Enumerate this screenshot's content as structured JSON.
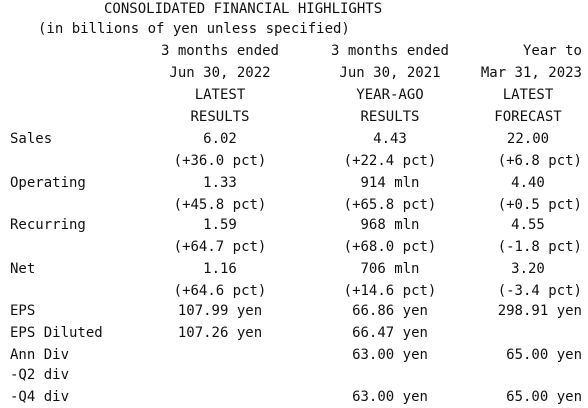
{
  "title": "CONSOLIDATED FINANCIAL HIGHLIGHTS",
  "subtitle": "(in billions of yen unless specified)",
  "columns": [
    {
      "period": "3 months ended",
      "date": "Jun 30, 2022",
      "kind1": "LATEST",
      "kind2": "RESULTS"
    },
    {
      "period": "3 months ended",
      "date": "Jun 30, 2021",
      "kind1": "YEAR-AGO",
      "kind2": "RESULTS"
    },
    {
      "period": "Year to",
      "date": "Mar 31, 2023",
      "kind1": "LATEST",
      "kind2": "FORECAST"
    }
  ],
  "rows": {
    "sales": {
      "label": "Sales",
      "v": [
        "6.02",
        "4.43",
        "22.00"
      ],
      "pct": [
        "(+36.0 pct)",
        "(+22.4 pct)",
        "(+6.8 pct)"
      ]
    },
    "operating": {
      "label": "Operating",
      "v": [
        "1.33",
        "914 mln",
        "4.40"
      ],
      "pct": [
        "(+45.8 pct)",
        "(+65.8 pct)",
        "(+0.5 pct)"
      ]
    },
    "recurring": {
      "label": "Recurring",
      "v": [
        "1.59",
        "968 mln",
        "4.55"
      ],
      "pct": [
        "(+64.7 pct)",
        "(+68.0 pct)",
        "(-1.8 pct)"
      ]
    },
    "net": {
      "label": "Net",
      "v": [
        "1.16",
        "706 mln",
        "3.20"
      ],
      "pct": [
        "(+64.6 pct)",
        "(+14.6 pct)",
        "(-3.4 pct)"
      ]
    },
    "eps": {
      "label": "EPS",
      "v": [
        "107.99 yen",
        "66.86 yen",
        "298.91 yen"
      ]
    },
    "eps_diluted": {
      "label": "EPS Diluted",
      "v": [
        "107.26 yen",
        "66.47 yen"
      ]
    },
    "ann_div": {
      "label": "Ann Div",
      "v": [
        "63.00 yen",
        "65.00 yen"
      ]
    },
    "q2_div": {
      "label": "-Q2 div"
    },
    "q4_div": {
      "label": "-Q4 div",
      "v": [
        "63.00 yen",
        "65.00 yen"
      ]
    }
  }
}
